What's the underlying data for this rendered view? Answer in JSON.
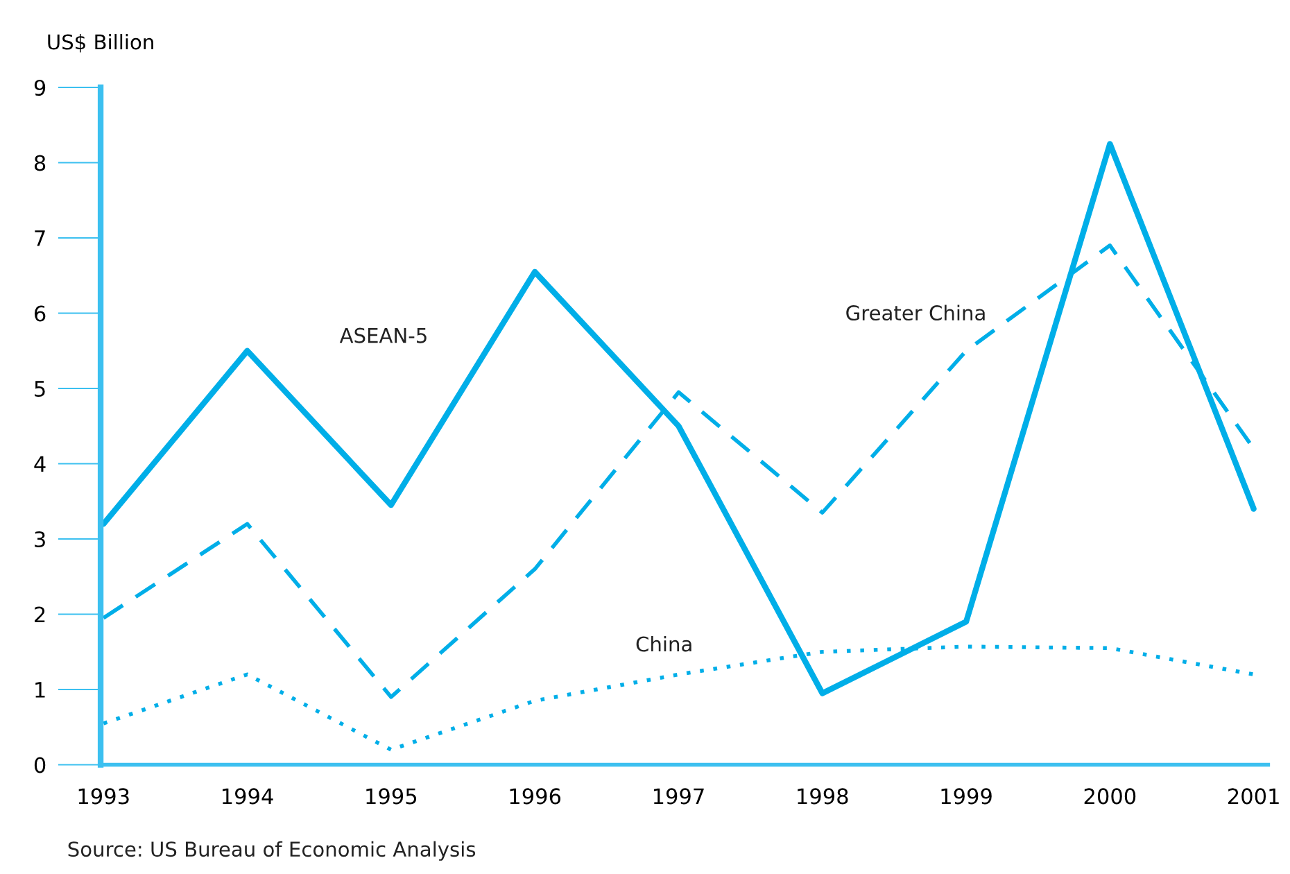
{
  "chart_data": {
    "type": "line",
    "ylabel": "US$ Billion",
    "categories": [
      "1993",
      "1994",
      "1995",
      "1996",
      "1997",
      "1998",
      "1999",
      "2000",
      "2001"
    ],
    "series": [
      {
        "name": "ASEAN-5",
        "color": "#00aee8",
        "line_style": "solid",
        "values": [
          3.2,
          5.5,
          3.45,
          6.55,
          4.5,
          0.95,
          1.9,
          8.25,
          3.4
        ]
      },
      {
        "name": "Greater China",
        "color": "#00aee8",
        "line_style": "dashed",
        "values": [
          1.95,
          3.2,
          0.9,
          2.6,
          4.95,
          3.35,
          5.5,
          6.9,
          4.2
        ]
      },
      {
        "name": "China",
        "color": "#00aee8",
        "line_style": "dotted",
        "values": [
          0.55,
          1.2,
          0.2,
          0.85,
          1.2,
          1.5,
          1.57,
          1.55,
          1.2
        ]
      }
    ],
    "ylim": [
      0,
      9
    ],
    "yticks": [
      0,
      1,
      2,
      3,
      4,
      5,
      6,
      7,
      8,
      9
    ],
    "grid": false,
    "legend": false,
    "marker": "none",
    "annotations": [
      "Source: US Bureau of Economic Analysis"
    ]
  }
}
